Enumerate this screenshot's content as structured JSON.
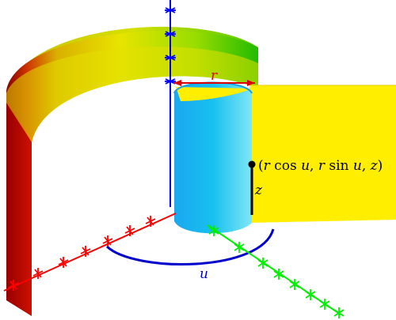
{
  "labels": {
    "radius": "r",
    "height": "z",
    "angle": "u"
  },
  "point_label": {
    "open": "(",
    "r1": "r",
    "cos": " cos ",
    "u1": "u",
    "comma1": ", ",
    "r2": "r",
    "sin": " sin ",
    "u2": "u",
    "comma2": ", ",
    "z": "z",
    "close": ")"
  },
  "colors": {
    "x_axis": "#ff0000",
    "y_axis": "#00ee00",
    "z_axis": "#0000ff",
    "radius_marker": "#dd0000",
    "angle_arc": "#0000cc",
    "half_plane": "#ffee00",
    "inner_cylinder": "#00bbff",
    "outer_cylinder_red": "#aa0000",
    "outer_cylinder_yellow": "#eeee00",
    "outer_cylinder_green": "#22cc00",
    "point": "#000000"
  }
}
